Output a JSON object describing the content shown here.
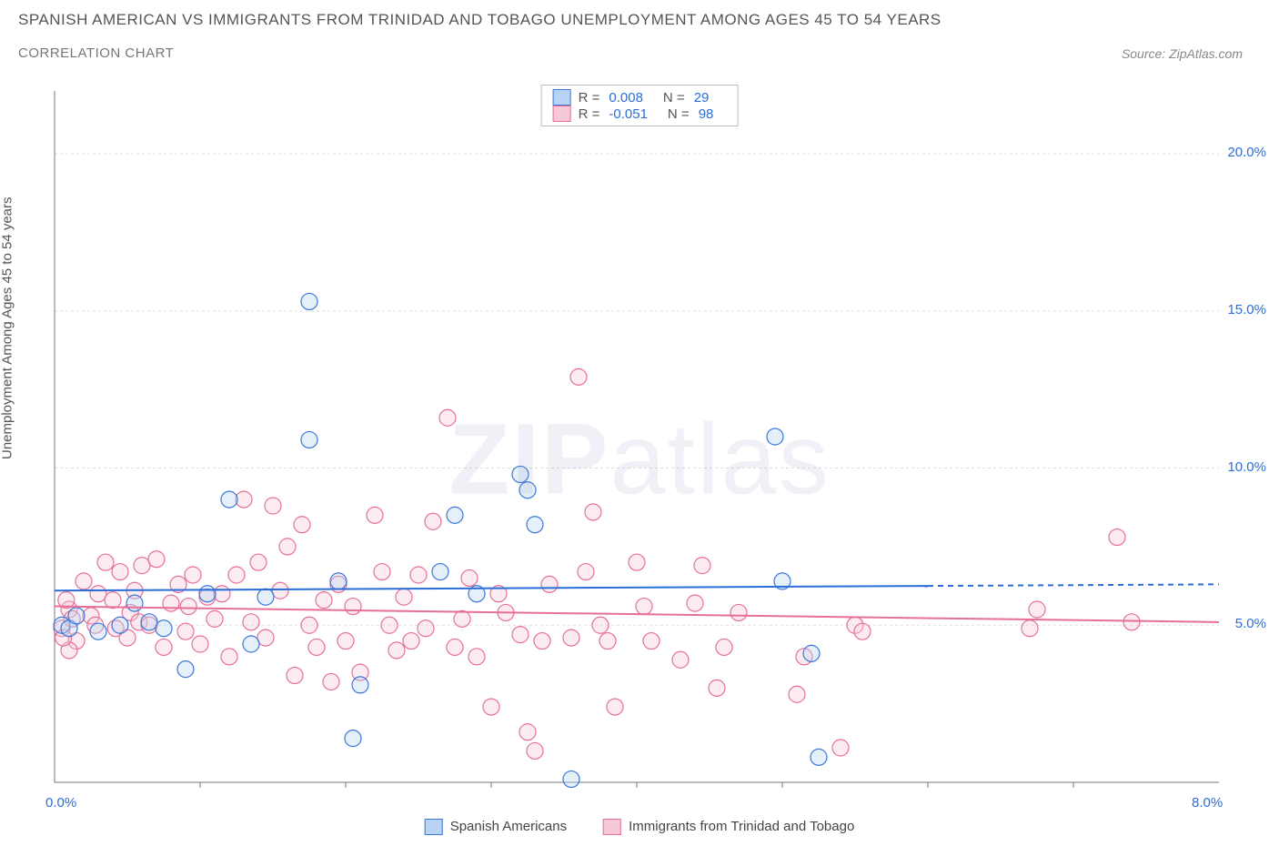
{
  "title_line1": "SPANISH AMERICAN VS IMMIGRANTS FROM TRINIDAD AND TOBAGO UNEMPLOYMENT AMONG AGES 45 TO 54 YEARS",
  "title_line2": "CORRELATION CHART",
  "source_label": "Source: ZipAtlas.com",
  "watermark_bold": "ZIP",
  "watermark_light": "atlas",
  "y_axis_label": "Unemployment Among Ages 45 to 54 years",
  "legend_top": {
    "series": [
      {
        "swatch_fill": "#b8d3f4",
        "swatch_stroke": "#3a78d8",
        "r_label": "R =",
        "r_value": "0.008",
        "n_label": "N =",
        "n_value": "29"
      },
      {
        "swatch_fill": "#f6c8d8",
        "swatch_stroke": "#e66f9a",
        "r_label": "R =",
        "r_value": "-0.051",
        "n_label": "N =",
        "n_value": "98"
      }
    ]
  },
  "legend_bottom": {
    "series1": {
      "fill": "#b8d3f4",
      "stroke": "#3a78d8",
      "label": "Spanish Americans"
    },
    "series2": {
      "fill": "#f6c8d8",
      "stroke": "#e66f9a",
      "label": "Immigrants from Trinidad and Tobago"
    }
  },
  "x_axis": {
    "origin": "0.0%",
    "max": "8.0%",
    "min_val": 0,
    "max_val": 8
  },
  "y_axis": {
    "ticks": [
      {
        "v": 5,
        "label": "5.0%"
      },
      {
        "v": 10,
        "label": "10.0%"
      },
      {
        "v": 15,
        "label": "15.0%"
      },
      {
        "v": 20,
        "label": "20.0%"
      }
    ],
    "min_val": 0,
    "max_val": 22
  },
  "plot": {
    "bg": "#ffffff",
    "grid_color": "#dddddd",
    "axis_color": "#777777",
    "marker_radius": 9,
    "marker_fill_opacity": 0.35,
    "trend": {
      "s1": {
        "color": "#2a6dd9",
        "y_start": 6.1,
        "y_end": 6.3,
        "solid_end_x": 6.0,
        "dash_end_x": 8.0
      },
      "s2": {
        "color": "#e66f9a",
        "y_start": 5.6,
        "y_end": 5.1,
        "solid_end_x": 8.0
      }
    },
    "series1": {
      "fill": "#b8d3f4",
      "stroke": "#3a78d8",
      "points": [
        [
          0.05,
          5.0
        ],
        [
          0.1,
          4.9
        ],
        [
          0.15,
          5.3
        ],
        [
          0.3,
          4.8
        ],
        [
          0.45,
          5.0
        ],
        [
          0.65,
          5.1
        ],
        [
          0.75,
          4.9
        ],
        [
          0.9,
          3.6
        ],
        [
          1.05,
          6.0
        ],
        [
          1.2,
          9.0
        ],
        [
          1.75,
          15.3
        ],
        [
          1.75,
          10.9
        ],
        [
          1.95,
          6.4
        ],
        [
          2.05,
          1.4
        ],
        [
          2.1,
          3.1
        ],
        [
          2.65,
          6.7
        ],
        [
          2.75,
          8.5
        ],
        [
          2.9,
          6.0
        ],
        [
          3.2,
          9.8
        ],
        [
          3.3,
          8.2
        ],
        [
          3.25,
          9.3
        ],
        [
          3.55,
          0.1
        ],
        [
          4.95,
          11.0
        ],
        [
          5.0,
          6.4
        ],
        [
          5.2,
          4.1
        ],
        [
          5.25,
          0.8
        ],
        [
          1.35,
          4.4
        ],
        [
          1.45,
          5.9
        ],
        [
          0.55,
          5.7
        ]
      ]
    },
    "series2": {
      "fill": "#f6c8d8",
      "stroke": "#e66f9a",
      "points": [
        [
          0.05,
          4.9
        ],
        [
          0.1,
          5.5
        ],
        [
          0.12,
          5.2
        ],
        [
          0.15,
          4.5
        ],
        [
          0.2,
          6.4
        ],
        [
          0.25,
          5.3
        ],
        [
          0.28,
          5.0
        ],
        [
          0.3,
          6.0
        ],
        [
          0.35,
          7.0
        ],
        [
          0.4,
          5.8
        ],
        [
          0.42,
          4.9
        ],
        [
          0.45,
          6.7
        ],
        [
          0.5,
          4.6
        ],
        [
          0.52,
          5.4
        ],
        [
          0.55,
          6.1
        ],
        [
          0.58,
          5.1
        ],
        [
          0.6,
          6.9
        ],
        [
          0.65,
          5.0
        ],
        [
          0.7,
          7.1
        ],
        [
          0.75,
          4.3
        ],
        [
          0.8,
          5.7
        ],
        [
          0.85,
          6.3
        ],
        [
          0.9,
          4.8
        ],
        [
          0.92,
          5.6
        ],
        [
          0.95,
          6.6
        ],
        [
          1.0,
          4.4
        ],
        [
          1.05,
          5.9
        ],
        [
          1.1,
          5.2
        ],
        [
          1.15,
          6.0
        ],
        [
          1.2,
          4.0
        ],
        [
          1.25,
          6.6
        ],
        [
          1.3,
          9.0
        ],
        [
          1.35,
          5.1
        ],
        [
          1.4,
          7.0
        ],
        [
          1.45,
          4.6
        ],
        [
          1.5,
          8.8
        ],
        [
          1.55,
          6.1
        ],
        [
          1.6,
          7.5
        ],
        [
          1.65,
          3.4
        ],
        [
          1.7,
          8.2
        ],
        [
          1.75,
          5.0
        ],
        [
          1.8,
          4.3
        ],
        [
          1.85,
          5.8
        ],
        [
          1.9,
          3.2
        ],
        [
          1.95,
          6.3
        ],
        [
          2.0,
          4.5
        ],
        [
          2.05,
          5.6
        ],
        [
          2.1,
          3.5
        ],
        [
          2.2,
          8.5
        ],
        [
          2.25,
          6.7
        ],
        [
          2.3,
          5.0
        ],
        [
          2.35,
          4.2
        ],
        [
          2.4,
          5.9
        ],
        [
          2.45,
          4.5
        ],
        [
          2.5,
          6.6
        ],
        [
          2.55,
          4.9
        ],
        [
          2.6,
          8.3
        ],
        [
          2.7,
          11.6
        ],
        [
          2.75,
          4.3
        ],
        [
          2.8,
          5.2
        ],
        [
          2.85,
          6.5
        ],
        [
          2.9,
          4.0
        ],
        [
          3.0,
          2.4
        ],
        [
          3.05,
          6.0
        ],
        [
          3.1,
          5.4
        ],
        [
          3.2,
          4.7
        ],
        [
          3.25,
          1.6
        ],
        [
          3.3,
          1.0
        ],
        [
          3.35,
          4.5
        ],
        [
          3.4,
          6.3
        ],
        [
          3.55,
          4.6
        ],
        [
          3.6,
          12.9
        ],
        [
          3.65,
          6.7
        ],
        [
          3.7,
          8.6
        ],
        [
          3.75,
          5.0
        ],
        [
          3.8,
          4.5
        ],
        [
          3.85,
          2.4
        ],
        [
          4.0,
          7.0
        ],
        [
          4.05,
          5.6
        ],
        [
          4.1,
          4.5
        ],
        [
          4.3,
          3.9
        ],
        [
          4.4,
          5.7
        ],
        [
          4.45,
          6.9
        ],
        [
          4.55,
          3.0
        ],
        [
          4.6,
          4.3
        ],
        [
          4.7,
          5.4
        ],
        [
          5.1,
          2.8
        ],
        [
          5.15,
          4.0
        ],
        [
          5.4,
          1.1
        ],
        [
          5.5,
          5.0
        ],
        [
          5.55,
          4.8
        ],
        [
          6.7,
          4.9
        ],
        [
          6.75,
          5.5
        ],
        [
          7.3,
          7.8
        ],
        [
          7.4,
          5.1
        ],
        [
          0.1,
          4.2
        ],
        [
          0.08,
          5.8
        ],
        [
          0.06,
          4.6
        ]
      ]
    }
  }
}
